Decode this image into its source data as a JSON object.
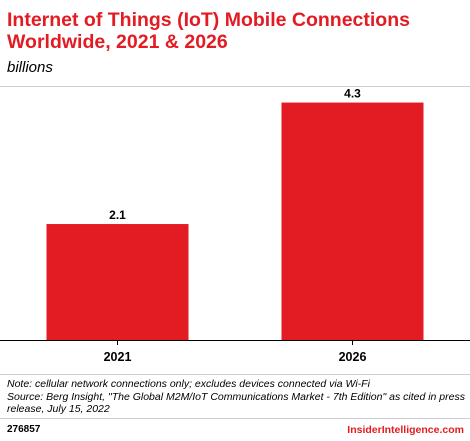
{
  "header": {
    "title": "Internet of Things (IoT) Mobile Connections Worldwide, 2021 & 2026",
    "subtitle": "billions"
  },
  "chart_data": {
    "type": "bar",
    "title": "Internet of Things (IoT) Mobile Connections Worldwide, 2021 & 2026",
    "subtitle": "billions",
    "categories": [
      "2021",
      "2026"
    ],
    "values": [
      2.1,
      4.3
    ],
    "value_labels": [
      "2.1",
      "4.3"
    ],
    "xlabel": "",
    "ylabel": "",
    "ylim": [
      0,
      4.6
    ],
    "grid": false,
    "legend": "none",
    "bar_color": "#e31b23"
  },
  "notes": {
    "note": "Note: cellular network connections only; excludes devices connected via Wi-Fi",
    "source": "Source: Berg Insight, \"The Global M2M/IoT Communications Market - 7th Edition\" as cited in press release, July 15, 2022"
  },
  "footer": {
    "id": "276857",
    "brand": "InsiderIntelligence.com"
  },
  "colors": {
    "accent": "#e31b23",
    "text": "#000000",
    "rule": "#cfcfcf"
  }
}
